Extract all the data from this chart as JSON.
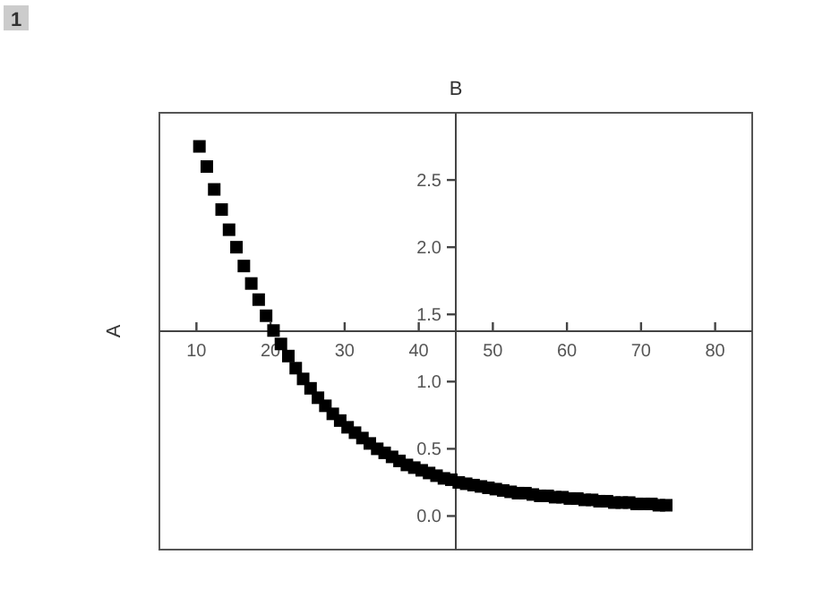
{
  "chart_data": {
    "type": "scatter",
    "xlabel": "B",
    "ylabel": "A",
    "marker": "square",
    "grid": false,
    "annotations": [
      "1"
    ],
    "xlim": [
      5,
      85
    ],
    "ylim": [
      -0.25,
      3.0
    ],
    "xticks": [
      10,
      20,
      30,
      40,
      50,
      60,
      70,
      80
    ],
    "yticks": [
      {
        "value": 0,
        "label": "0.0"
      },
      {
        "value": 0.5,
        "label": "0.5"
      },
      {
        "value": 1,
        "label": "1.0"
      },
      {
        "value": 1.5,
        "label": "1.5"
      },
      {
        "value": 2,
        "label": "2.0"
      },
      {
        "value": 2.5,
        "label": "2.5"
      }
    ],
    "series": [
      {
        "color": "#000000",
        "x": [
          10.4,
          11.4,
          12.4,
          13.4,
          14.4,
          15.4,
          16.4,
          17.4,
          18.4,
          19.4,
          20.4,
          21.4,
          22.4,
          23.4,
          24.4,
          25.4,
          26.4,
          27.4,
          28.4,
          29.4,
          30.4,
          31.4,
          32.4,
          33.4,
          34.4,
          35.4,
          36.4,
          37.4,
          38.4,
          39.4,
          40.4,
          41.4,
          42.4,
          43.4,
          44.4,
          45.4,
          46.4,
          47.4,
          48.4,
          49.4,
          50.4,
          51.4,
          52.4,
          53.4,
          54.4,
          55.4,
          56.4,
          57.4,
          58.4,
          59.4,
          60.4,
          61.4,
          62.4,
          63.4,
          64.4,
          65.4,
          66.4,
          67.4,
          68.4,
          69.4,
          70.4,
          71.4,
          72.4,
          73.4
        ],
        "values": [
          2.75,
          2.6,
          2.43,
          2.28,
          2.13,
          2.0,
          1.86,
          1.73,
          1.61,
          1.49,
          1.38,
          1.28,
          1.19,
          1.1,
          1.02,
          0.95,
          0.88,
          0.82,
          0.76,
          0.71,
          0.66,
          0.62,
          0.58,
          0.54,
          0.5,
          0.47,
          0.44,
          0.41,
          0.38,
          0.36,
          0.34,
          0.32,
          0.3,
          0.28,
          0.27,
          0.25,
          0.24,
          0.23,
          0.22,
          0.21,
          0.2,
          0.19,
          0.18,
          0.17,
          0.17,
          0.16,
          0.15,
          0.15,
          0.14,
          0.14,
          0.13,
          0.13,
          0.12,
          0.12,
          0.11,
          0.11,
          0.1,
          0.1,
          0.1,
          0.09,
          0.09,
          0.09,
          0.08,
          0.08
        ]
      }
    ]
  }
}
